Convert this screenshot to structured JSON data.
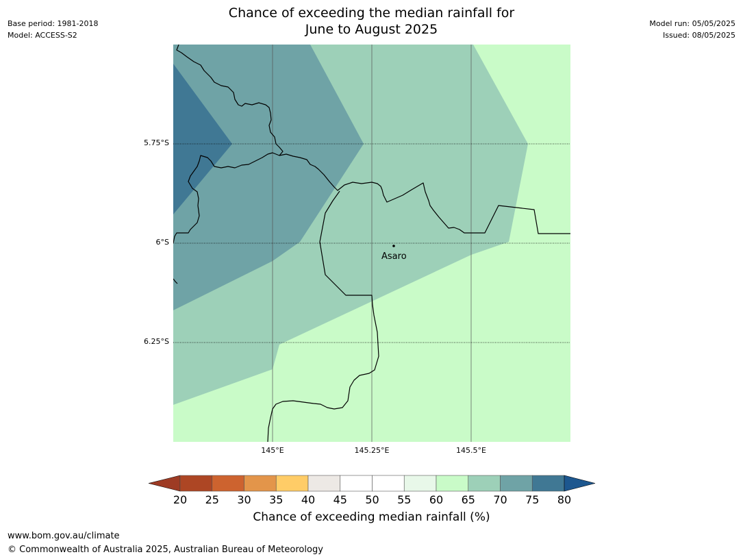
{
  "header": {
    "title_line1": "Chance of exceeding the median rainfall for",
    "title_line2": "June to August 2025",
    "base_period": "Base period: 1981-2018",
    "model": "Model: ACCESS-S2",
    "model_run": "Model run: 05/05/2025",
    "issued": "Issued: 08/05/2025"
  },
  "map": {
    "lat_labels": [
      "5.75°S",
      "6°S",
      "6.25°S"
    ],
    "lon_labels": [
      "145°E",
      "145.25°E",
      "145.5°E"
    ],
    "place_label": "Asaro",
    "zone_colors": {
      "zone_60_65": "#c9fbc8",
      "zone_65_70": "#9dd0b8",
      "zone_70_75": "#6fa3a6",
      "zone_75_80": "#407894"
    }
  },
  "legend": {
    "ticks": [
      "20",
      "25",
      "30",
      "35",
      "40",
      "45",
      "50",
      "55",
      "60",
      "65",
      "70",
      "75",
      "80"
    ],
    "colors": [
      "#ad4624",
      "#cd632f",
      "#e3954a",
      "#ffcc67",
      "#ede9e5",
      "#ffffff",
      "#ffffff",
      "#e8f8e9",
      "#c9fbc8",
      "#9dd0b8",
      "#6fa3a6",
      "#407894"
    ],
    "under_color": "#9e3b24",
    "over_color": "#1d578f",
    "label": "Chance of exceeding median rainfall (%)"
  },
  "footer": {
    "url": "www.bom.gov.au/climate",
    "copyright": "© Commonwealth of Australia 2025, Australian Bureau of Meteorology"
  }
}
